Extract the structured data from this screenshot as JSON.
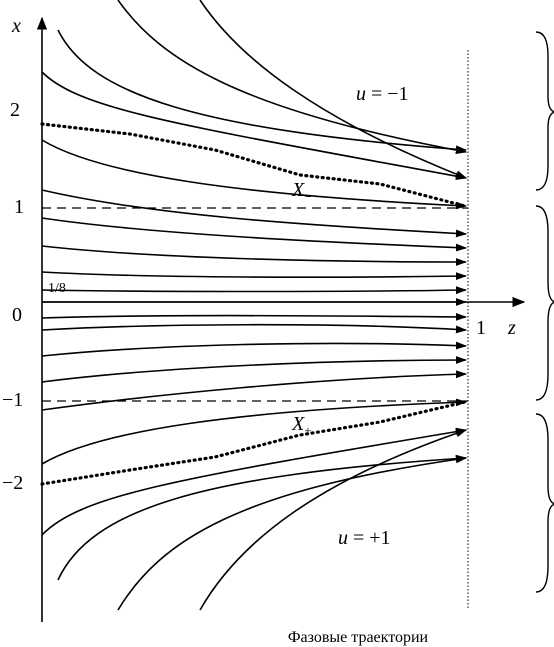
{
  "caption": "Фазовые траектории",
  "axes": {
    "x_label": "x",
    "z_label": "z",
    "z_tick_label": "1",
    "ticks": [
      {
        "label": "2",
        "value": 2
      },
      {
        "label": "1",
        "value": 1
      },
      {
        "label": "0",
        "value": 0
      },
      {
        "label": "−1",
        "value": -1
      },
      {
        "label": "−2",
        "value": -2
      }
    ],
    "small_label": "1/8"
  },
  "regions": {
    "upper": {
      "label_var": "u",
      "label_eq": " = −1"
    },
    "lower": {
      "label_var": "u",
      "label_eq": " = +1"
    }
  },
  "curves": {
    "upper_switch": {
      "name": "X",
      "sub": "−"
    },
    "lower_switch": {
      "name": "X",
      "sub": "+"
    }
  },
  "dashed_levels": [
    1,
    -1
  ]
}
